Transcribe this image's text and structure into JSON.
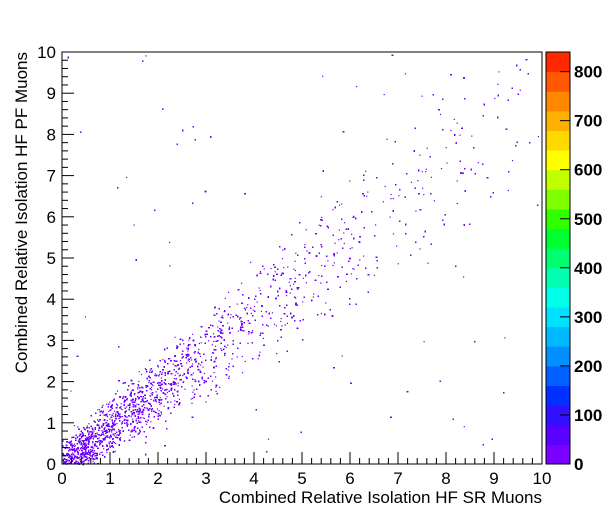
{
  "chart_data": {
    "type": "heatmap",
    "title": "",
    "xlabel": "Combined Relative Isolation HF SR Muons",
    "ylabel": "Combined Relative Isolation HF PF Muons",
    "xlim": [
      0,
      10
    ],
    "ylim": [
      0,
      10
    ],
    "x_ticks": [
      "0",
      "1",
      "2",
      "3",
      "4",
      "5",
      "6",
      "7",
      "8",
      "9",
      "10"
    ],
    "y_ticks": [
      "0",
      "1",
      "2",
      "3",
      "4",
      "5",
      "6",
      "7",
      "8",
      "9",
      "10"
    ],
    "z_range": [
      0,
      840
    ],
    "z_ticks": [
      "0",
      "100",
      "200",
      "300",
      "400",
      "500",
      "600",
      "700",
      "800"
    ],
    "colorbar_palette": [
      "#7a00ff",
      "#5a00ff",
      "#3010ff",
      "#0030ff",
      "#0060ff",
      "#0090ff",
      "#00b8ff",
      "#00e0ff",
      "#00ffe8",
      "#00ffb0",
      "#00ff70",
      "#00ff30",
      "#30ff00",
      "#80ff00",
      "#c0ff00",
      "#ffff00",
      "#ffd800",
      "#ffb000",
      "#ff8800",
      "#ff5800",
      "#ff2800"
    ],
    "point_color": "#7000ff",
    "grid": false,
    "distribution": {
      "description_of_shape": "",
      "trend": [
        [
          0,
          0
        ],
        [
          1,
          0.9
        ],
        [
          2,
          1.8
        ],
        [
          3,
          2.8
        ],
        [
          4,
          3.7
        ],
        [
          5,
          4.6
        ],
        [
          6,
          5.5
        ],
        [
          7,
          6.3
        ],
        [
          8,
          7.2
        ],
        [
          9,
          8.0
        ],
        [
          10,
          8.8
        ]
      ]
    }
  }
}
